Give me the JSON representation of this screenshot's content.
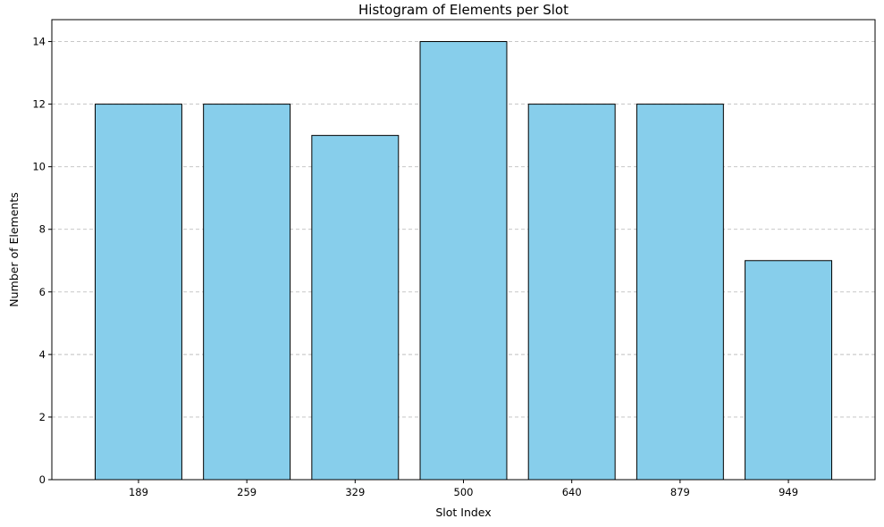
{
  "chart_data": {
    "type": "bar",
    "title": "Histogram of Elements per Slot",
    "xlabel": "Slot Index",
    "ylabel": "Number of Elements",
    "categories": [
      "189",
      "259",
      "329",
      "500",
      "640",
      "879",
      "949"
    ],
    "values": [
      12,
      12,
      11,
      14,
      12,
      12,
      7
    ],
    "ylim": [
      0,
      14.7
    ],
    "yticks": [
      0,
      2,
      4,
      6,
      8,
      10,
      12,
      14
    ],
    "ytick_labels": [
      "0",
      "2",
      "4",
      "6",
      "8",
      "10",
      "12",
      "14"
    ],
    "grid": "y-dashed",
    "legend": "none",
    "bar_color": "#87ceeb",
    "edge_color": "#000000"
  }
}
